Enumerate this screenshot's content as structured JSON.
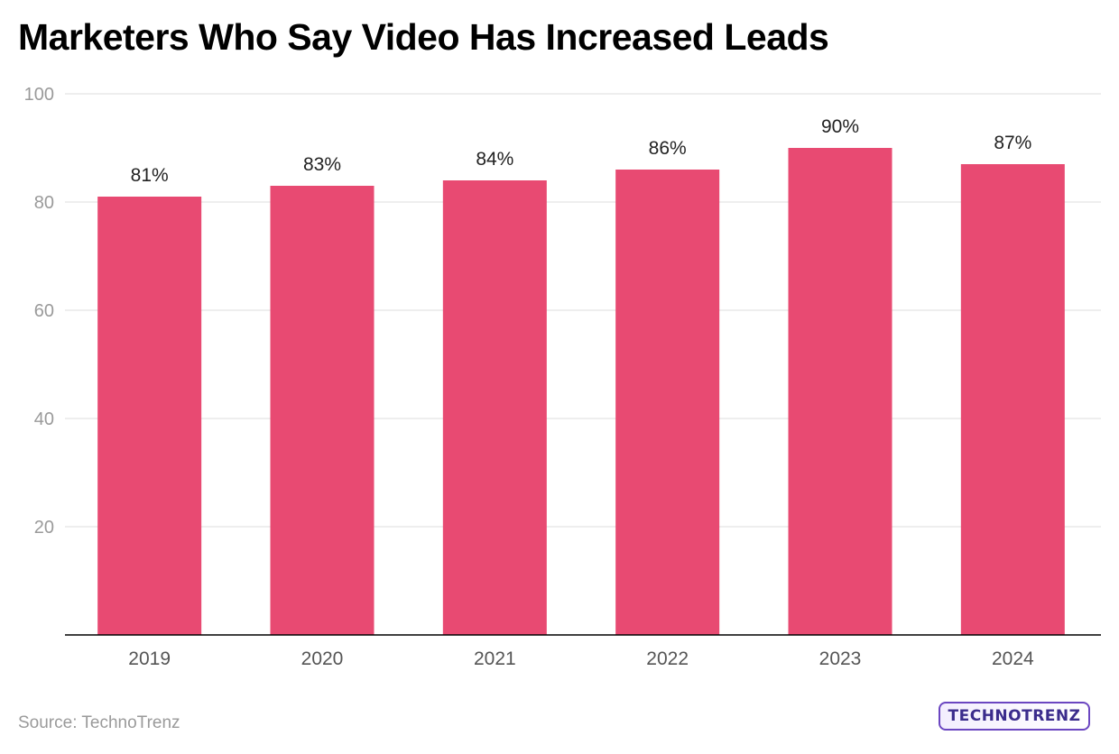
{
  "title": "Marketers Who Say Video Has Increased Leads",
  "source": "Source: TechnoTrenz",
  "logo_text": "TECHNOTRENZ",
  "colors": {
    "bar": "#e84a72",
    "grid": "#e3e3e3",
    "axis": "#000000",
    "tick_text": "#9a9a9a",
    "category_text": "#555555",
    "label_text": "#222222",
    "logo": "#6b46c1"
  },
  "chart_data": {
    "type": "bar",
    "title": "Marketers Who Say Video Has Increased Leads",
    "categories": [
      "2019",
      "2020",
      "2021",
      "2022",
      "2023",
      "2024"
    ],
    "values": [
      81,
      83,
      84,
      86,
      90,
      87
    ],
    "data_labels": [
      "81%",
      "83%",
      "84%",
      "86%",
      "90%",
      "87%"
    ],
    "ylim": [
      0,
      100
    ],
    "yticks": [
      20,
      40,
      60,
      80,
      100
    ],
    "grid": true,
    "xlabel": "",
    "ylabel": ""
  }
}
